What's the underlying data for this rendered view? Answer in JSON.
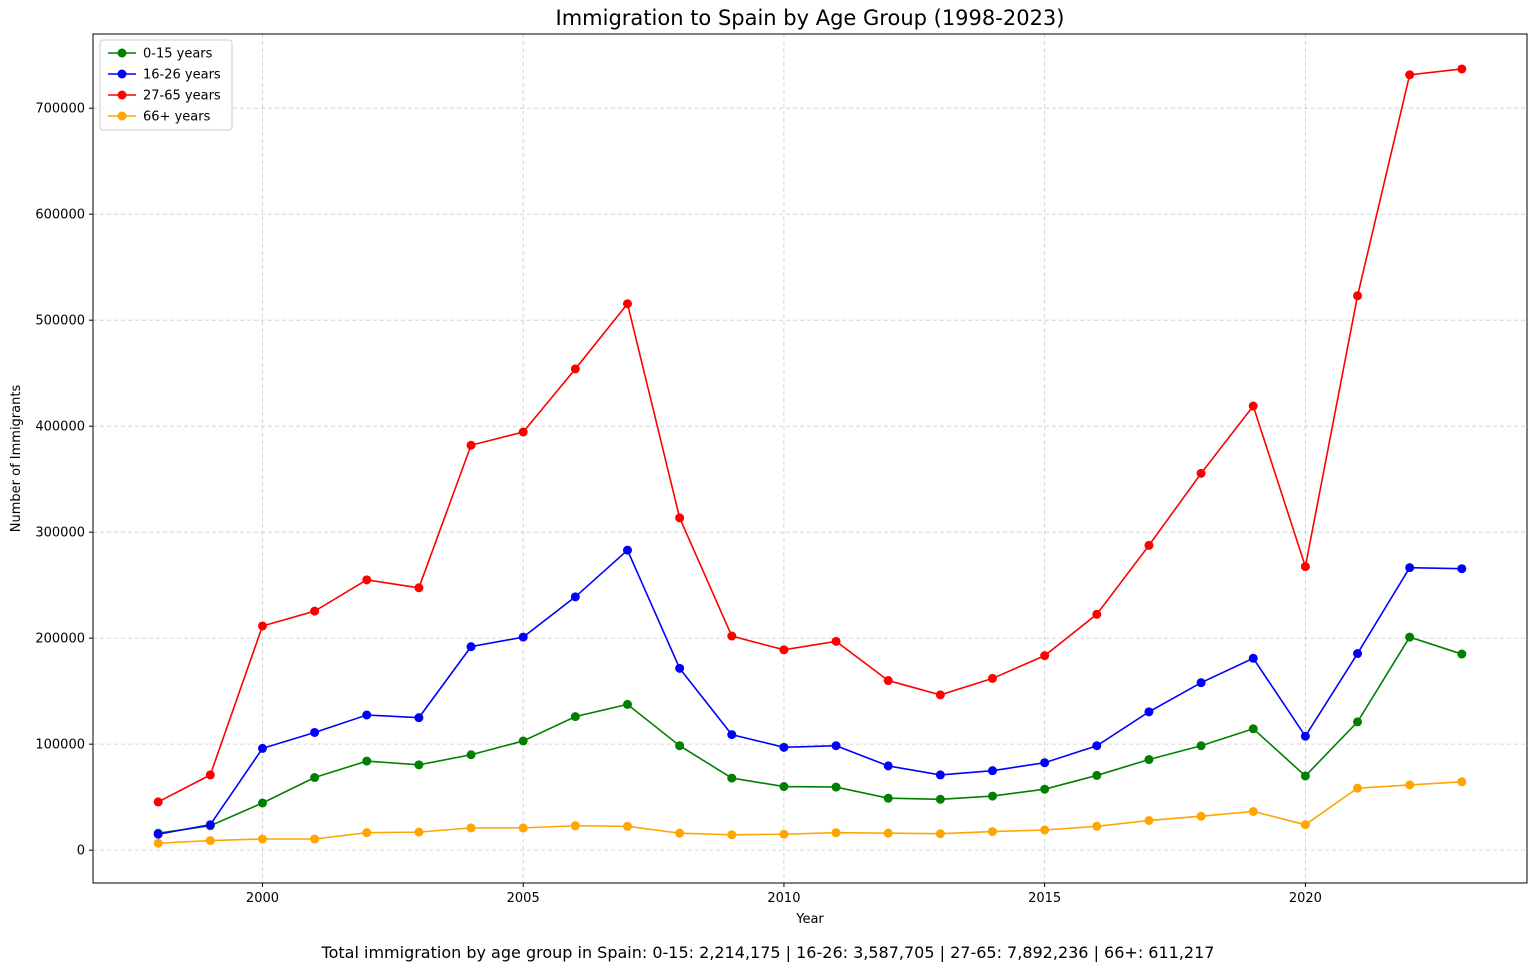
{
  "chart_data": {
    "type": "line",
    "title": "Immigration to Spain by Age Group (1998-2023)",
    "xlabel": "Year",
    "ylabel": "Number of Immigrants",
    "xlim": [
      1996.75,
      2024.25
    ],
    "ylim": [
      -31000,
      770000
    ],
    "xticks": [
      2000,
      2005,
      2010,
      2015,
      2020
    ],
    "yticks": [
      0,
      100000,
      200000,
      300000,
      400000,
      500000,
      600000,
      700000
    ],
    "grid": true,
    "legend_position": "top-left",
    "x": [
      1998,
      1999,
      2000,
      2001,
      2002,
      2003,
      2004,
      2005,
      2006,
      2007,
      2008,
      2009,
      2010,
      2011,
      2012,
      2013,
      2014,
      2015,
      2016,
      2017,
      2018,
      2019,
      2020,
      2021,
      2022,
      2023
    ],
    "series": [
      {
        "name": "0-15 years",
        "color": "#008000",
        "values": [
          16000,
          23000,
          44500,
          68500,
          84000,
          80500,
          90000,
          103000,
          126000,
          137500,
          98500,
          68000,
          60000,
          59500,
          49000,
          48000,
          51000,
          57500,
          70500,
          85500,
          98500,
          114500,
          70000,
          121000,
          201000,
          185000
        ]
      },
      {
        "name": "16-26 years",
        "color": "#0000ff",
        "values": [
          15000,
          24000,
          96000,
          111000,
          127500,
          125000,
          192000,
          201000,
          239000,
          283000,
          171500,
          109000,
          97000,
          98500,
          79500,
          71000,
          75000,
          82500,
          98500,
          130500,
          158000,
          181000,
          107500,
          185500,
          266500,
          265500
        ]
      },
      {
        "name": "27-65 years",
        "color": "#ff0000",
        "values": [
          45500,
          71000,
          211500,
          225500,
          255000,
          247500,
          382000,
          394500,
          454000,
          515500,
          313500,
          202000,
          189000,
          197000,
          160000,
          146500,
          162000,
          183500,
          222500,
          287500,
          355500,
          419000,
          267500,
          523000,
          731500,
          737000
        ]
      },
      {
        "name": "66+ years",
        "color": "#ffa500",
        "values": [
          6500,
          9000,
          10500,
          10500,
          16500,
          17000,
          21000,
          21000,
          23000,
          22500,
          16000,
          14500,
          15000,
          16500,
          16000,
          15500,
          17500,
          19000,
          22500,
          28000,
          32000,
          36500,
          24000,
          58500,
          61500,
          64500
        ]
      }
    ],
    "caption": "Total immigration by age group in Spain: 0-15: 2,214,175 | 16-26: 3,587,705 | 27-65: 7,892,236 | 66+: 611,217"
  }
}
